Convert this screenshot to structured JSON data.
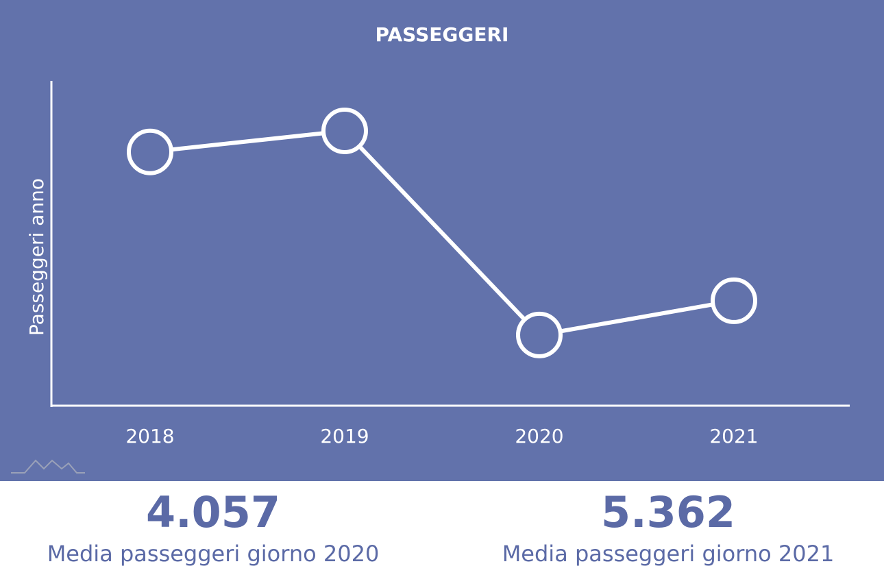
{
  "chart_data": {
    "type": "line",
    "title": "PASSEGGERI",
    "y_label": "Passeggeri anno",
    "categories": [
      "2018",
      "2019",
      "2020",
      "2021"
    ],
    "values": [
      4010000,
      4300000,
      1485000,
      1957000
    ],
    "ylim": [
      510000,
      4990000
    ],
    "color": "#ffffff"
  },
  "stats": [
    {
      "value": "4.057",
      "label": "Media passeggeri giorno 2020"
    },
    {
      "value": "5.362",
      "label": "Media passeggeri giorno 2021"
    }
  ]
}
